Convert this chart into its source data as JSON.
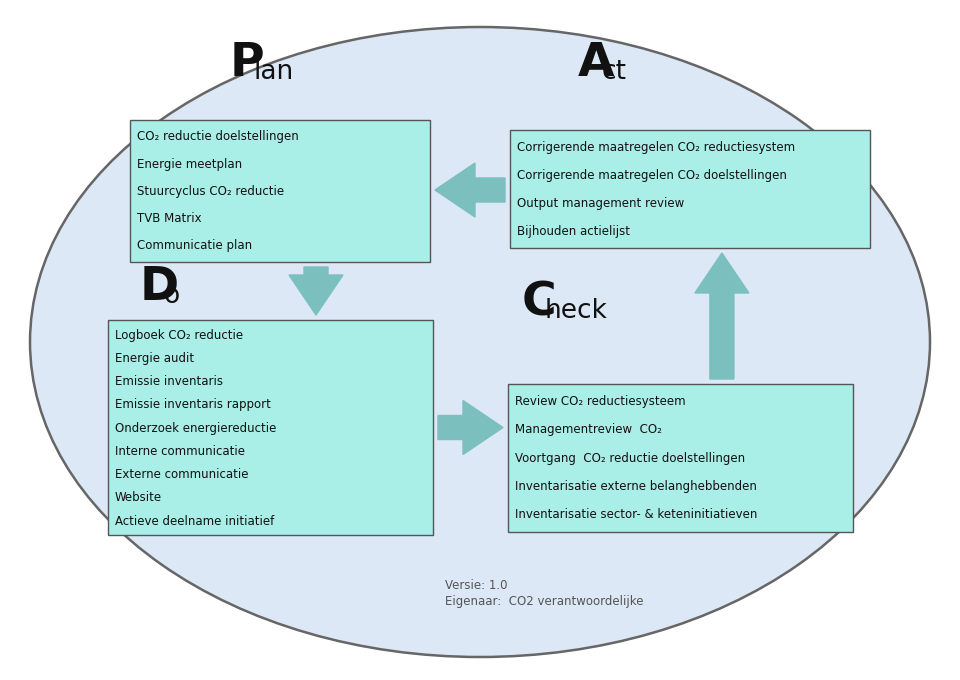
{
  "bg_ellipse_color": "#dce8f5",
  "bg_ellipse_edge": "#666666",
  "box_color": "#aaeee8",
  "box_edge": "#555555",
  "arrow_color": "#7bbfbf",
  "text_color": "#111111",
  "plan_box_lines": [
    "CO₂ reductie doelstellingen",
    "Energie meetplan",
    "Stuurcyclus CO₂ reductie",
    "TVB Matrix",
    "Communicatie plan"
  ],
  "act_box_lines": [
    "Corrigerende maatregelen CO₂ reductiesystem",
    "Corrigerende maatregelen CO₂ doelstellingen",
    "Output management review",
    "Bijhouden actielijst"
  ],
  "do_box_lines": [
    "Logboek CO₂ reductie",
    "Energie audit",
    "Emissie inventaris",
    "Emissie inventaris rapport",
    "Onderzoek energiereductie",
    "Interne communicatie",
    "Externe communicatie",
    "Website",
    "Actieve deelname initiatief"
  ],
  "check_box_lines": [
    "Review CO₂ reductiesysteem",
    "Managementreview  CO₂",
    "Voortgang  CO₂ reductie doelstellingen",
    "Inventarisatie externe belanghebbenden",
    "Inventarisatie sector- & keteninitiatieven"
  ],
  "footer_line1": "Versie: 1.0",
  "footer_line2": "Eigenaar:  CO2 verantwoordelijke"
}
